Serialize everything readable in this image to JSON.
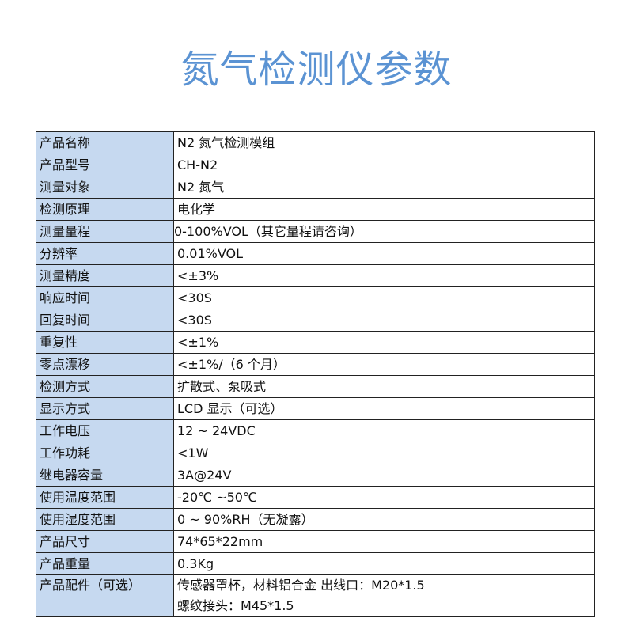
{
  "title": "氮气检测仪参数",
  "colors": {
    "title": "#5b93d3",
    "label_bg": "#c6d9f0"
  },
  "rows": [
    {
      "label": "产品名称",
      "value": [
        "N2 氮气检测模组"
      ]
    },
    {
      "label": "产品型号",
      "value": [
        "CH-N2"
      ]
    },
    {
      "label": "测量对象",
      "value": [
        "N2 氮气"
      ]
    },
    {
      "label": "检测原理",
      "value": [
        "电化学"
      ]
    },
    {
      "label": "测量量程",
      "value": [
        "0-100%VOL（其它量程请咨询）"
      ]
    },
    {
      "label": "分辨率",
      "value": [
        "0.01%VOL"
      ]
    },
    {
      "label": "测量精度",
      "value": [
        "<±3%"
      ]
    },
    {
      "label": "响应时间",
      "value": [
        "<30S"
      ]
    },
    {
      "label": "回复时间",
      "value": [
        "<30S"
      ]
    },
    {
      "label": "重复性",
      "value": [
        "<±1%"
      ]
    },
    {
      "label": "零点漂移",
      "value": [
        "<±1%/（6 个月）"
      ]
    },
    {
      "label": "检测方式",
      "value": [
        "扩散式、泵吸式"
      ]
    },
    {
      "label": "显示方式",
      "value": [
        "LCD 显示（可选）"
      ]
    },
    {
      "label": "工作电压",
      "value": [
        "12 ~ 24VDC"
      ]
    },
    {
      "label": "工作功耗",
      "value": [
        "<1W"
      ]
    },
    {
      "label": "继电器容量",
      "value": [
        "3A@24V"
      ]
    },
    {
      "label": "使用温度范围",
      "value": [
        "-20℃ ~50℃"
      ]
    },
    {
      "label": "使用湿度范围",
      "value": [
        "0 ~ 90%RH（无凝露）"
      ]
    },
    {
      "label": "产品尺寸",
      "value": [
        "74*65*22mm"
      ]
    },
    {
      "label": "产品重量",
      "value": [
        "0.3Kg"
      ]
    },
    {
      "label": "产品配件（可选）",
      "value": [
        "传感器罩杯，材料铝合金  出线口：M20*1.5",
        "螺纹接头：M45*1.5"
      ]
    }
  ]
}
